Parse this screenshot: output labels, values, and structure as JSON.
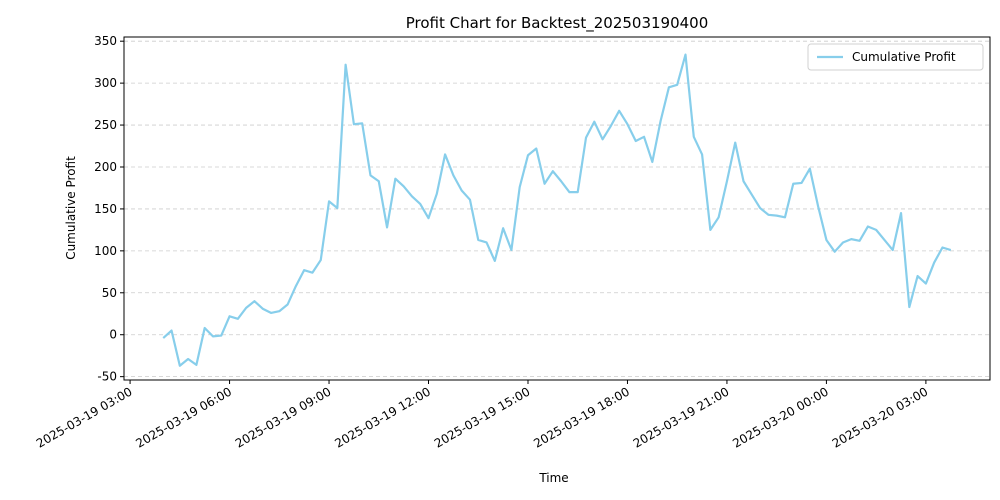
{
  "chart_data": {
    "type": "line",
    "title": "Profit Chart for Backtest_202503190400",
    "x_label": "Time",
    "y_label": "Cumulative Profit",
    "x": [
      "2025-03-19 04:00",
      "2025-03-19 04:15",
      "2025-03-19 04:30",
      "2025-03-19 04:45",
      "2025-03-19 05:00",
      "2025-03-19 05:15",
      "2025-03-19 05:30",
      "2025-03-19 05:45",
      "2025-03-19 06:00",
      "2025-03-19 06:15",
      "2025-03-19 06:30",
      "2025-03-19 06:45",
      "2025-03-19 07:00",
      "2025-03-19 07:15",
      "2025-03-19 07:30",
      "2025-03-19 07:45",
      "2025-03-19 08:00",
      "2025-03-19 08:15",
      "2025-03-19 08:30",
      "2025-03-19 08:45",
      "2025-03-19 09:00",
      "2025-03-19 09:15",
      "2025-03-19 09:30",
      "2025-03-19 09:45",
      "2025-03-19 10:00",
      "2025-03-19 10:15",
      "2025-03-19 10:30",
      "2025-03-19 10:45",
      "2025-03-19 11:00",
      "2025-03-19 11:15",
      "2025-03-19 11:30",
      "2025-03-19 11:45",
      "2025-03-19 12:00",
      "2025-03-19 12:15",
      "2025-03-19 12:30",
      "2025-03-19 12:45",
      "2025-03-19 13:00",
      "2025-03-19 13:15",
      "2025-03-19 13:30",
      "2025-03-19 13:45",
      "2025-03-19 14:00",
      "2025-03-19 14:15",
      "2025-03-19 14:30",
      "2025-03-19 14:45",
      "2025-03-19 15:00",
      "2025-03-19 15:15",
      "2025-03-19 15:30",
      "2025-03-19 15:45",
      "2025-03-19 16:00",
      "2025-03-19 16:15",
      "2025-03-19 16:30",
      "2025-03-19 16:45",
      "2025-03-19 17:00",
      "2025-03-19 17:15",
      "2025-03-19 17:30",
      "2025-03-19 17:45",
      "2025-03-19 18:00",
      "2025-03-19 18:15",
      "2025-03-19 18:30",
      "2025-03-19 18:45",
      "2025-03-19 19:00",
      "2025-03-19 19:15",
      "2025-03-19 19:30",
      "2025-03-19 19:45",
      "2025-03-19 20:00",
      "2025-03-19 20:15",
      "2025-03-19 20:30",
      "2025-03-19 20:45",
      "2025-03-19 21:00",
      "2025-03-19 21:15",
      "2025-03-19 21:30",
      "2025-03-19 21:45",
      "2025-03-19 22:00",
      "2025-03-19 22:15",
      "2025-03-19 22:30",
      "2025-03-19 22:45",
      "2025-03-19 23:00",
      "2025-03-19 23:15",
      "2025-03-19 23:30",
      "2025-03-19 23:45",
      "2025-03-20 00:00",
      "2025-03-20 00:15",
      "2025-03-20 00:30",
      "2025-03-20 00:45",
      "2025-03-20 01:00",
      "2025-03-20 01:15",
      "2025-03-20 01:30",
      "2025-03-20 01:45",
      "2025-03-20 02:00",
      "2025-03-20 02:15",
      "2025-03-20 02:30",
      "2025-03-20 02:45",
      "2025-03-20 03:00",
      "2025-03-20 03:15",
      "2025-03-20 03:30",
      "2025-03-20 03:45"
    ],
    "series": [
      {
        "name": "Cumulative Profit",
        "color": "#87ceeb",
        "values": [
          -4,
          5,
          -37,
          -29,
          -36,
          8,
          -2,
          -1,
          22,
          19,
          32,
          40,
          31,
          26,
          28,
          36,
          58,
          77,
          74,
          89,
          159,
          151,
          322,
          251,
          252,
          190,
          183,
          128,
          186,
          177,
          165,
          156,
          139,
          168,
          215,
          190,
          172,
          161,
          113,
          110,
          88,
          127,
          101,
          176,
          214,
          222,
          180,
          195,
          183,
          170,
          170,
          235,
          254,
          233,
          249,
          267,
          251,
          231,
          236,
          206,
          255,
          295,
          298,
          334,
          236,
          215,
          125,
          140,
          183,
          229,
          183,
          167,
          151,
          143,
          142,
          140,
          180,
          181,
          198,
          153,
          113,
          99,
          110,
          114,
          112,
          129,
          125,
          113,
          101,
          145,
          33,
          70,
          61,
          86,
          104,
          101
        ]
      }
    ],
    "xlim": [
      "2025-03-19 02:49",
      "2025-03-20 04:56"
    ],
    "xticks": [
      "2025-03-19 03:00",
      "2025-03-19 06:00",
      "2025-03-19 09:00",
      "2025-03-19 12:00",
      "2025-03-19 15:00",
      "2025-03-19 18:00",
      "2025-03-19 21:00",
      "2025-03-20 00:00",
      "2025-03-20 03:00"
    ],
    "ylim": [
      -54,
      355
    ],
    "yticks": [
      -50,
      0,
      50,
      100,
      150,
      200,
      250,
      300,
      350
    ],
    "grid": "y",
    "legend": "upper right"
  }
}
